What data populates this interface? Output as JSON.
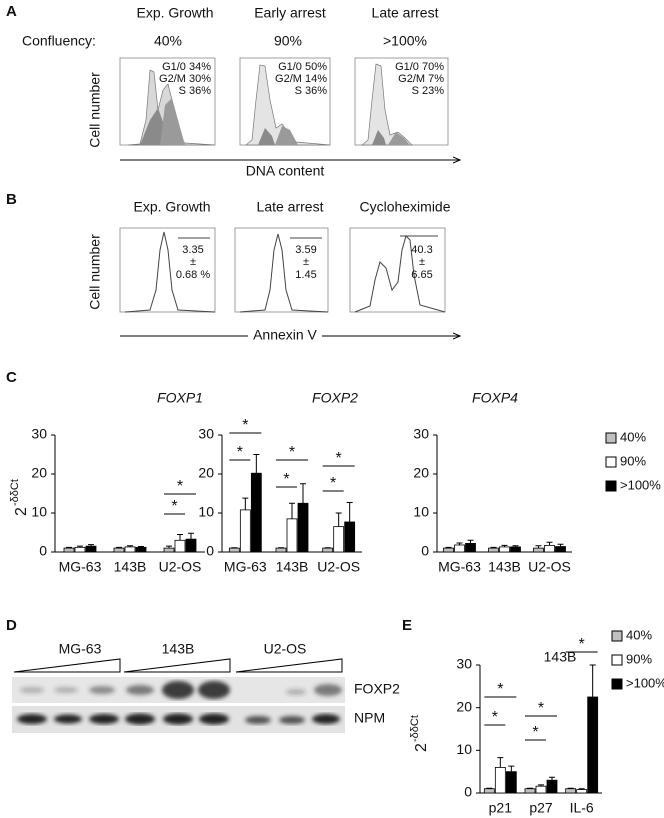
{
  "panel_a": {
    "letter": "A",
    "confluency_label": "Confluency:",
    "y_label": "Cell number",
    "x_label": "DNA content",
    "columns": [
      {
        "title": "Exp. Growth",
        "confluency": "40%",
        "stats": [
          "G1/0 34%",
          "G2/M 30%",
          "S 36%"
        ]
      },
      {
        "title": "Early arrest",
        "confluency": "90%",
        "stats": [
          "G1/0 50%",
          "G2/M 14%",
          "S 36%"
        ]
      },
      {
        "title": "Late arrest",
        "confluency": ">100%",
        "stats": [
          "G1/0 70%",
          "G2/M  7%",
          "S 23%"
        ]
      }
    ]
  },
  "panel_b": {
    "letter": "B",
    "y_label": "Cell number",
    "x_label": "Annexin V",
    "columns": [
      {
        "title": "Exp. Growth",
        "stats": [
          "3.35",
          "±",
          "0.68 %"
        ]
      },
      {
        "title": "Late arrest",
        "stats": [
          "3.59",
          "±",
          "1.45"
        ]
      },
      {
        "title": "Cycloheximide",
        "stats": [
          "40.3",
          "±",
          "6.65"
        ]
      }
    ]
  },
  "panel_c": {
    "letter": "C"
  },
  "panel_d": {
    "letter": "D",
    "cell_lines": [
      "MG-63",
      "143B",
      "U2-OS"
    ],
    "blots": [
      "FOXP2",
      "NPM"
    ]
  },
  "panel_e": {
    "letter": "E"
  },
  "chart_data": [
    {
      "type": "bar",
      "title": "FOXP1",
      "categories": [
        "MG-63",
        "143B",
        "U2-OS"
      ],
      "y_label": "2",
      "y_label_superscript": "-δδCt",
      "ylim": [
        0,
        30
      ],
      "yticks": [
        0,
        10,
        20,
        30
      ],
      "series": [
        {
          "color": "#c0c0c0",
          "values": [
            1,
            1,
            1
          ],
          "errors": [
            0.2,
            0.2,
            0.5
          ]
        },
        {
          "color": "#ffffff",
          "values": [
            1.2,
            1.3,
            3
          ],
          "errors": [
            0.3,
            0.3,
            1.5
          ]
        },
        {
          "color": "#000000",
          "values": [
            1.5,
            1.2,
            3.3
          ],
          "errors": [
            0.4,
            0.2,
            1.5
          ]
        }
      ],
      "annotations": [
        "*",
        "*"
      ]
    },
    {
      "type": "bar",
      "title": "FOXP2",
      "categories": [
        "MG-63",
        "143B",
        "U2-OS"
      ],
      "ylim": [
        0,
        30
      ],
      "yticks": [
        0,
        10,
        20,
        30
      ],
      "series": [
        {
          "color": "#c0c0c0",
          "values": [
            1,
            1,
            1
          ],
          "errors": [
            0.1,
            0.1,
            0.1
          ]
        },
        {
          "color": "#ffffff",
          "values": [
            10.8,
            8.5,
            6.5
          ],
          "errors": [
            3,
            4,
            3.5
          ]
        },
        {
          "color": "#000000",
          "values": [
            20.2,
            12.5,
            7.7
          ],
          "errors": [
            4.8,
            5,
            5
          ]
        }
      ],
      "annotations": [
        "*",
        "*",
        "*",
        "*",
        "*",
        "*"
      ]
    },
    {
      "type": "bar",
      "title": "FOXP4",
      "categories": [
        "MG-63",
        "143B",
        "U2-OS"
      ],
      "ylim": [
        0,
        30
      ],
      "yticks": [
        0,
        10,
        20,
        30
      ],
      "series": [
        {
          "name": "40%",
          "color": "#c0c0c0",
          "values": [
            1,
            1,
            1
          ],
          "errors": [
            0.2,
            0.2,
            0.6
          ]
        },
        {
          "name": "90%",
          "color": "#ffffff",
          "values": [
            1.8,
            1.3,
            1.7
          ],
          "errors": [
            0.5,
            0.4,
            0.8
          ]
        },
        {
          "name": ">100%",
          "color": "#000000",
          "values": [
            2.2,
            1.3,
            1.4
          ],
          "errors": [
            0.8,
            0.3,
            0.6
          ]
        }
      ]
    },
    {
      "type": "bar",
      "title": "143B",
      "categories": [
        "p21",
        "p27",
        "IL-6"
      ],
      "y_label": "2",
      "y_label_superscript": "-δδCt",
      "ylim": [
        0,
        30
      ],
      "yticks": [
        0,
        10,
        20,
        30
      ],
      "series": [
        {
          "name": "40%",
          "color": "#c0c0c0",
          "values": [
            1,
            1,
            1
          ],
          "errors": [
            0.1,
            0.1,
            0.1
          ]
        },
        {
          "name": "90%",
          "color": "#ffffff",
          "values": [
            6,
            1.6,
            0.8
          ],
          "errors": [
            2.3,
            0.3,
            0.2
          ]
        },
        {
          "name": ">100%",
          "color": "#000000",
          "values": [
            5,
            3,
            22.5
          ],
          "errors": [
            1.3,
            0.7,
            7.5
          ]
        }
      ],
      "annotations": [
        "*",
        "*",
        "*",
        "*",
        "*"
      ]
    }
  ]
}
